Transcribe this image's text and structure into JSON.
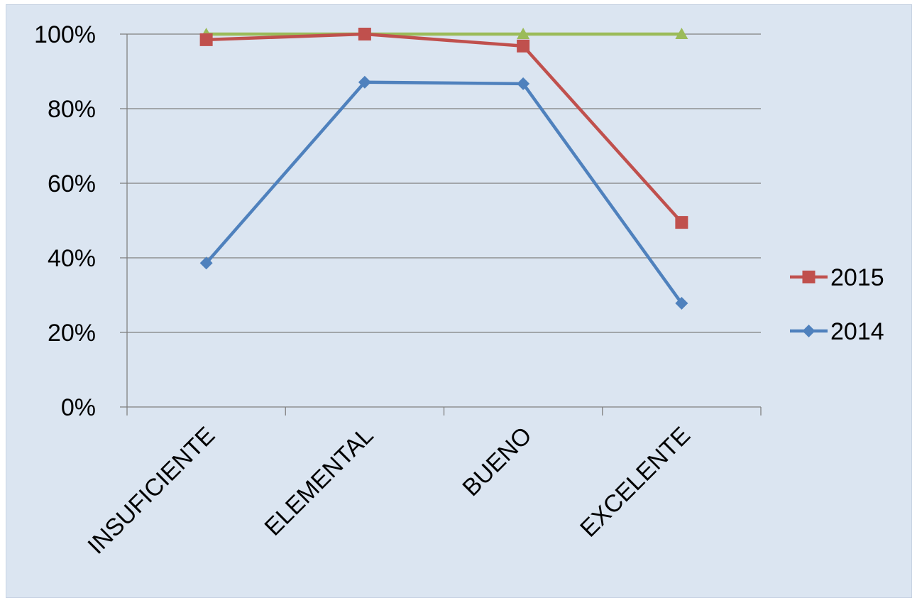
{
  "chart_data": {
    "type": "line",
    "categories": [
      "INSUFICIENTE",
      "ELEMENTAL",
      "BUENO",
      "EXCELENTE"
    ],
    "series": [
      {
        "values": [
          100,
          100,
          100,
          100
        ],
        "color": "#9bbb59",
        "marker": "triangle"
      },
      {
        "name": "2015",
        "values": [
          98.5,
          100,
          96.8,
          49.5
        ],
        "color": "#c0504d",
        "marker": "square"
      },
      {
        "name": "2014",
        "values": [
          38.6,
          87.1,
          86.7,
          27.8
        ],
        "color": "#4f81bd",
        "marker": "diamond"
      }
    ],
    "y_ticks": [
      "0%",
      "20%",
      "40%",
      "60%",
      "80%",
      "100%"
    ],
    "ylim": [
      0,
      100
    ],
    "grid": true,
    "legend_position": "right",
    "colors": {
      "plot_background": "#dbe5f1",
      "gridline": "#808080"
    }
  }
}
